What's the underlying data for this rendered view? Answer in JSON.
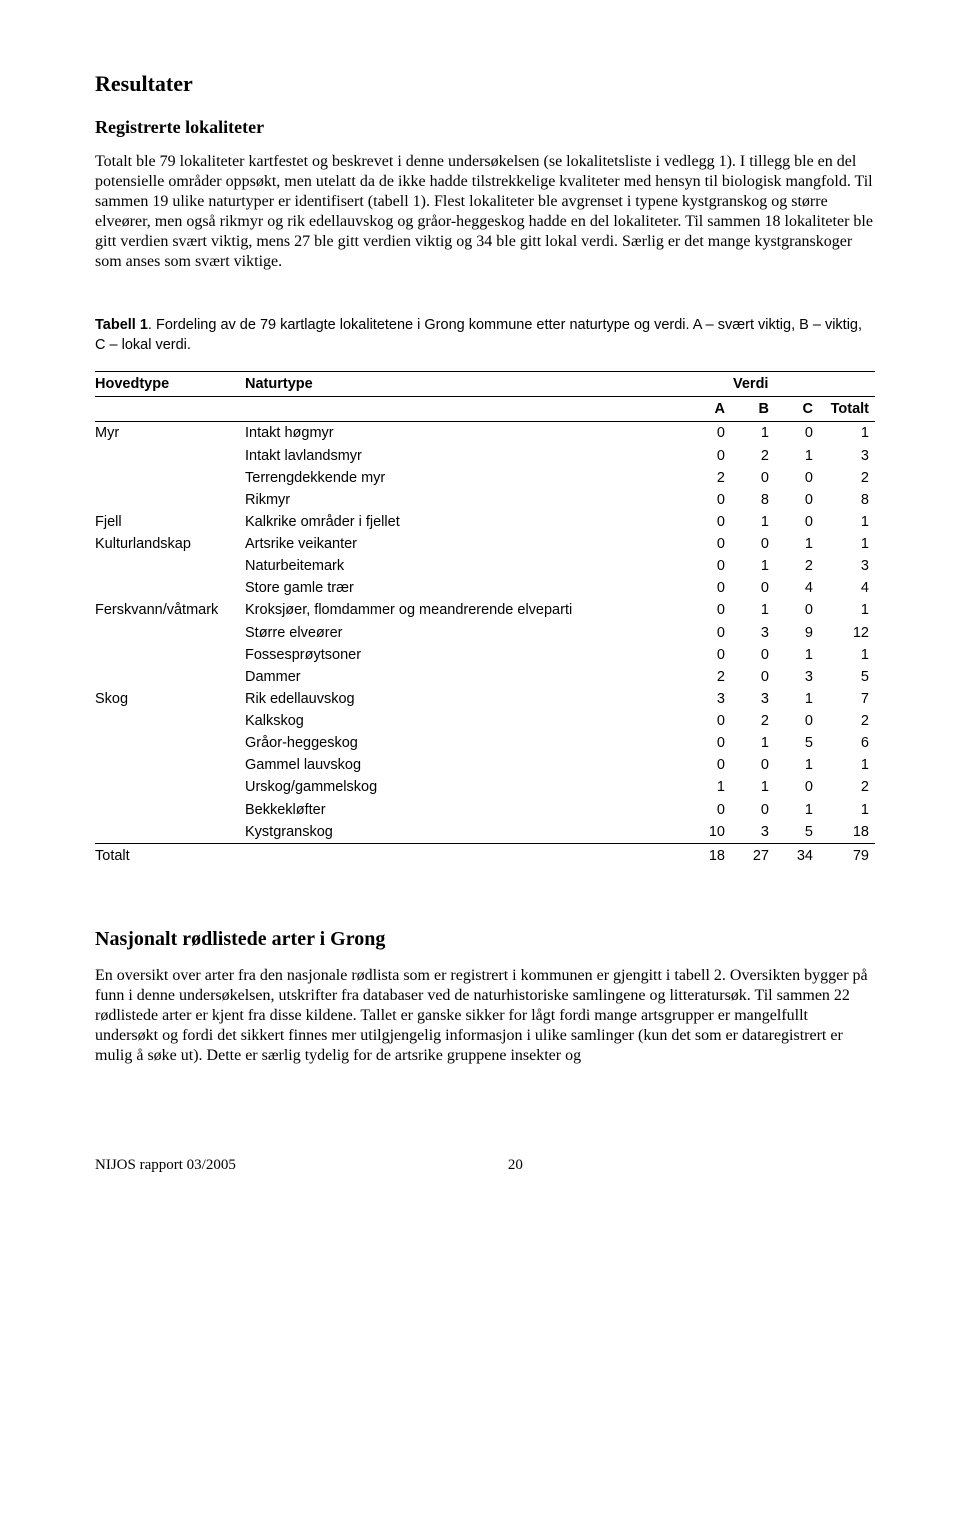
{
  "heading_results": "Resultater",
  "heading_localities": "Registrerte lokaliteter",
  "para1": "Totalt ble 79 lokaliteter kartfestet og beskrevet i denne undersøkelsen (se lokalitetsliste i vedlegg 1). I tillegg ble en del potensielle områder oppsøkt, men utelatt da de ikke hadde tilstrekkelige kvaliteter med hensyn til biologisk mangfold. Til sammen 19 ulike naturtyper er identifisert (tabell 1). Flest lokaliteter ble avgrenset i typene kystgranskog og større elveører, men også rikmyr og rik edellauvskog og gråor-heggeskog hadde en del lokaliteter. Til sammen 18 lokaliteter ble gitt verdien svært viktig, mens 27 ble gitt verdien viktig og 34 ble gitt lokal verdi. Særlig er det mange kystgranskoger som anses som svært viktige.",
  "caption": "Tabell 1. Fordeling av de 79 kartlagte lokalitetene i Grong kommune etter naturtype og verdi. A – svært viktig, B – viktig, C – lokal verdi.",
  "table": {
    "head_hovedtype": "Hovedtype",
    "head_naturtype": "Naturtype",
    "head_verdi": "Verdi",
    "head_A": "A",
    "head_B": "B",
    "head_C": "C",
    "head_totalt": "Totalt",
    "rows": [
      {
        "h": "Myr",
        "n": "Intakt høgmyr",
        "a": "0",
        "b": "1",
        "c": "0",
        "t": "1"
      },
      {
        "h": "",
        "n": "Intakt lavlandsmyr",
        "a": "0",
        "b": "2",
        "c": "1",
        "t": "3"
      },
      {
        "h": "",
        "n": "Terrengdekkende myr",
        "a": "2",
        "b": "0",
        "c": "0",
        "t": "2"
      },
      {
        "h": "",
        "n": "Rikmyr",
        "a": "0",
        "b": "8",
        "c": "0",
        "t": "8"
      },
      {
        "h": "Fjell",
        "n": "Kalkrike områder i fjellet",
        "a": "0",
        "b": "1",
        "c": "0",
        "t": "1"
      },
      {
        "h": "Kulturlandskap",
        "n": "Artsrike veikanter",
        "a": "0",
        "b": "0",
        "c": "1",
        "t": "1"
      },
      {
        "h": "",
        "n": "Naturbeitemark",
        "a": "0",
        "b": "1",
        "c": "2",
        "t": "3"
      },
      {
        "h": "",
        "n": "Store gamle trær",
        "a": "0",
        "b": "0",
        "c": "4",
        "t": "4"
      },
      {
        "h": "Ferskvann/våtmark",
        "n": "Kroksjøer, flomdammer og meandrerende elveparti",
        "a": "0",
        "b": "1",
        "c": "0",
        "t": "1"
      },
      {
        "h": "",
        "n": "Større elveører",
        "a": "0",
        "b": "3",
        "c": "9",
        "t": "12"
      },
      {
        "h": "",
        "n": "Fossesprøytsoner",
        "a": "0",
        "b": "0",
        "c": "1",
        "t": "1"
      },
      {
        "h": "",
        "n": "Dammer",
        "a": "2",
        "b": "0",
        "c": "3",
        "t": "5"
      },
      {
        "h": "Skog",
        "n": "Rik edellauvskog",
        "a": "3",
        "b": "3",
        "c": "1",
        "t": "7"
      },
      {
        "h": "",
        "n": "Kalkskog",
        "a": "0",
        "b": "2",
        "c": "0",
        "t": "2"
      },
      {
        "h": "",
        "n": "Gråor-heggeskog",
        "a": "0",
        "b": "1",
        "c": "5",
        "t": "6"
      },
      {
        "h": "",
        "n": "Gammel lauvskog",
        "a": "0",
        "b": "0",
        "c": "1",
        "t": "1"
      },
      {
        "h": "",
        "n": "Urskog/gammelskog",
        "a": "1",
        "b": "1",
        "c": "0",
        "t": "2"
      },
      {
        "h": "",
        "n": "Bekkekløfter",
        "a": "0",
        "b": "0",
        "c": "1",
        "t": "1"
      },
      {
        "h": "",
        "n": "Kystgranskog",
        "a": "10",
        "b": "3",
        "c": "5",
        "t": "18"
      }
    ],
    "total": {
      "h": "Totalt",
      "a": "18",
      "b": "27",
      "c": "34",
      "t": "79"
    }
  },
  "heading_species": "Nasjonalt rødlistede arter i Grong",
  "para2": "En oversikt over arter fra den nasjonale rødlista som er registrert i kommunen er gjengitt i tabell 2. Oversikten bygger på funn i denne undersøkelsen, utskrifter fra databaser ved de naturhistoriske samlingene og litteratursøk. Til sammen 22 rødlistede arter er kjent fra disse kildene. Tallet er ganske sikker for lågt fordi mange artsgrupper er mangelfullt undersøkt og fordi det sikkert finnes mer utilgjengelig informasjon i ulike samlinger (kun det som er dataregistrert er mulig å søke ut). Dette er særlig tydelig for de artsrike gruppene insekter og",
  "footer_left": "NIJOS rapport 03/2005",
  "footer_page": "20"
}
